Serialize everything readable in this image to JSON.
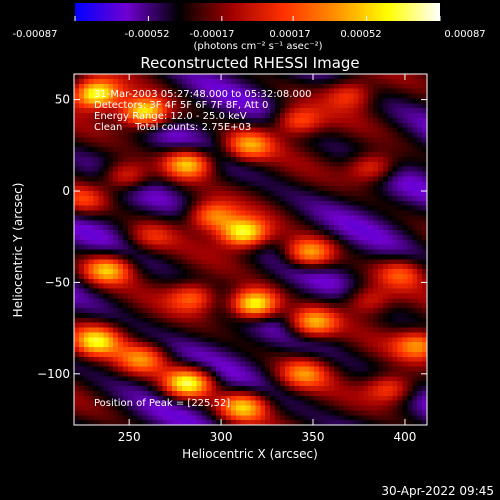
{
  "chart_data": {
    "type": "heatmap",
    "title": "Reconstructed RHESSI Image",
    "xlabel": "Heliocentric X (arcsec)",
    "ylabel": "Heliocentric Y (arcsec)",
    "xlim": [
      220,
      412
    ],
    "ylim": [
      -128,
      64
    ],
    "xticks": [
      250,
      300,
      350,
      400
    ],
    "yticks": [
      50,
      0,
      -50,
      -100
    ],
    "colorbar": {
      "ticks": [
        "-0.00087",
        "-0.00052",
        "-0.00017",
        "0.00017",
        "0.00052",
        "0.00087"
      ],
      "label": "(photons cm⁻² s⁻¹ asec⁻²)",
      "vmin": -0.00087,
      "vmax": 0.00087,
      "colors": [
        "#0000ff",
        "#7000d0",
        "#000000",
        "#a00000",
        "#ff3000",
        "#ff9000",
        "#ffff00",
        "#ffffff"
      ]
    },
    "annotations": [
      "31-Mar-2003 05:27:48.000 to 05:32:08.000",
      "Detectors: 3F 4F 5F 6F 7F 8F, Att 0",
      "Energy Range: 12.0 - 25.0 keV",
      "Clean    Total counts: 2.75E+03"
    ],
    "peak_text": "Position of Peak = [225,52]",
    "peak": [
      225,
      52
    ],
    "blobs": [
      [
        258,
        43,
        0.9
      ],
      [
        232,
        53,
        0.95
      ],
      [
        282,
        15,
        0.8
      ],
      [
        315,
        25,
        0.6
      ],
      [
        342,
        38,
        0.5
      ],
      [
        370,
        53,
        0.4
      ],
      [
        248,
        8,
        0.5
      ],
      [
        225,
        -5,
        0.4
      ],
      [
        295,
        -14,
        0.6
      ],
      [
        312,
        -23,
        0.9
      ],
      [
        348,
        -34,
        0.7
      ],
      [
        382,
        13,
        0.5
      ],
      [
        238,
        -43,
        0.7
      ],
      [
        262,
        -25,
        0.3
      ],
      [
        318,
        -62,
        1.0
      ],
      [
        285,
        -58,
        0.5
      ],
      [
        350,
        -72,
        0.7
      ],
      [
        380,
        -60,
        0.4
      ],
      [
        398,
        -45,
        0.4
      ],
      [
        232,
        -82,
        0.7
      ],
      [
        257,
        -92,
        0.5
      ],
      [
        282,
        -105,
        0.9
      ],
      [
        312,
        -118,
        0.7
      ],
      [
        345,
        -100,
        0.5
      ],
      [
        392,
        -108,
        0.5
      ],
      [
        408,
        -84,
        0.6
      ]
    ]
  },
  "footer": {
    "date": "30-Apr-2022 09:45"
  }
}
